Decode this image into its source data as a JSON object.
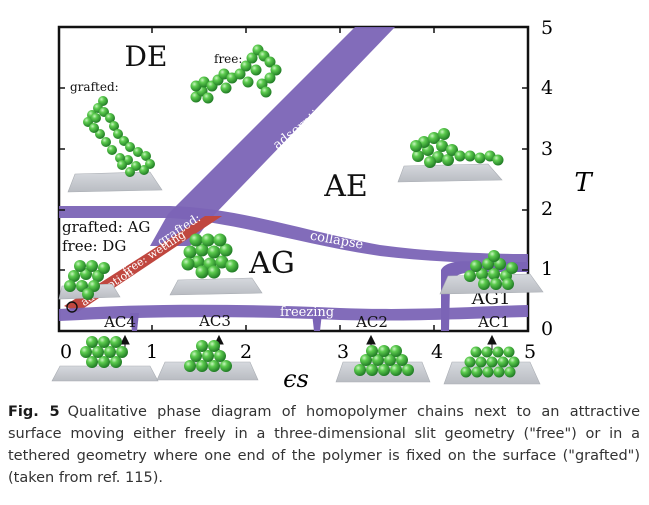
{
  "figure": {
    "colors": {
      "boundary": "#7b64b6",
      "boundary_light": "#9c88d4",
      "wetting": "#c0473f",
      "monomer": "#3aa83a",
      "monomer_light": "#8fe08f",
      "surface": "#c8cbd0"
    },
    "x_axis": {
      "label": "ϵs",
      "ticks": [
        "0",
        "1",
        "2",
        "3",
        "4",
        "5"
      ]
    },
    "y_axis": {
      "label": "T",
      "ticks": [
        "0",
        "1",
        "2",
        "3",
        "4",
        "5"
      ]
    },
    "phase_labels": {
      "de": "DE",
      "ae": "AE",
      "ag": "AG",
      "ag1": "AG1",
      "grafted_ag": "grafted: AG",
      "free_dg": "free: DG"
    },
    "line_labels": {
      "adsorption": "adsorption",
      "collapse": "collapse",
      "freezing": "freezing",
      "grafted_wetting": "grafted:",
      "free_wetting": "free: wetting",
      "adsorption_lower": "adsorption"
    },
    "annotations": {
      "grafted": "grafted:",
      "free": "free:"
    },
    "crystal_labels": [
      "AC4",
      "AC3",
      "AC2",
      "AC1"
    ]
  },
  "caption": {
    "label": "Fig. 5",
    "text": "Qualitative phase diagram of homopolymer chains next to an attractive surface moving either freely in a three-dimensional slit geometry (\"free\") or in a tethered geometry where one end of the polymer is fixed on the surface (\"grafted\") (taken from ref. 115)."
  }
}
